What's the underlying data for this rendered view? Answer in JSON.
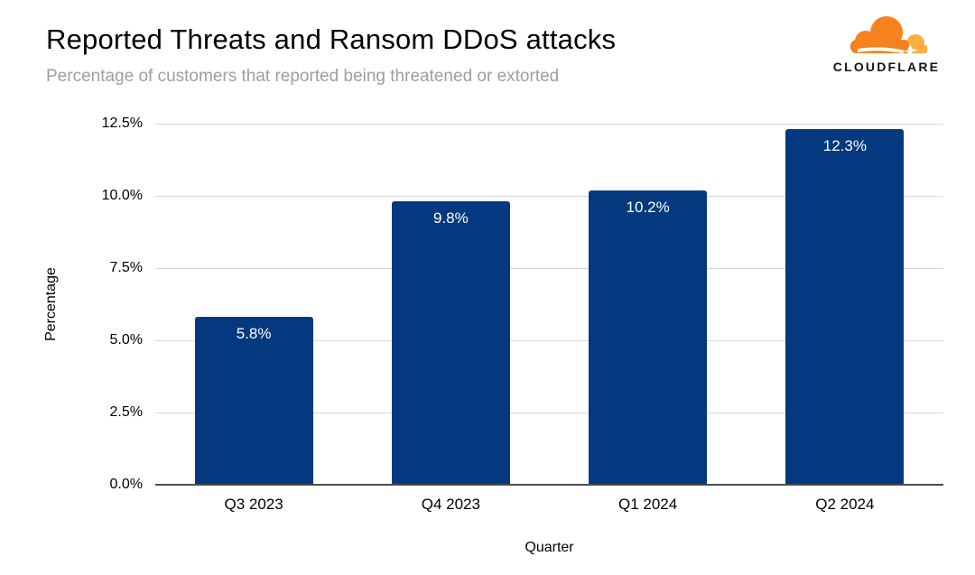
{
  "header": {
    "title": "Reported Threats and Ransom DDoS attacks",
    "subtitle": "Percentage of customers that reported being threatened or extorted"
  },
  "logo": {
    "brand": "CLOUDFLARE",
    "cloud_primary_color": "#f6821f",
    "cloud_secondary_color": "#fbad41"
  },
  "chart_data": {
    "type": "bar",
    "title": "Reported Threats and Ransom DDoS attacks",
    "subtitle": "Percentage of customers that reported being threatened or extorted",
    "categories": [
      "Q3 2023",
      "Q4 2023",
      "Q1 2024",
      "Q2 2024"
    ],
    "values": [
      5.8,
      9.8,
      10.2,
      12.3
    ],
    "data_labels": [
      "5.8%",
      "9.8%",
      "10.2%",
      "12.3%"
    ],
    "xlabel": "Quarter",
    "ylabel": "Percentage",
    "ylim": [
      0,
      12.5
    ],
    "yticks": [
      0,
      2.5,
      5,
      7.5,
      10,
      12.5
    ],
    "ytick_labels": [
      "0.0%",
      "2.5%",
      "5.0%",
      "7.5%",
      "10.0%",
      "12.5%"
    ],
    "grid": true,
    "legend": "none",
    "bar_color": "#05397f",
    "bar_label_color": "#ffffff",
    "gridline_color": "#d9d9d9"
  }
}
